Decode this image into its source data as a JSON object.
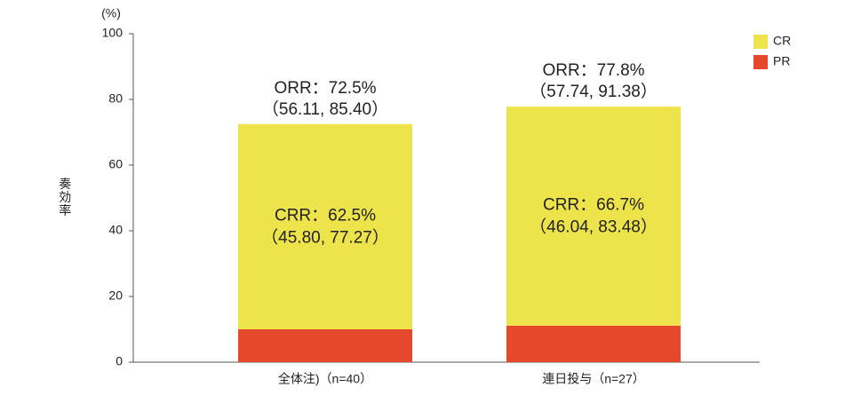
{
  "chart_data": {
    "type": "stacked_bar",
    "y_unit": "(%)",
    "y_label": "奏効率",
    "categories": [
      "全体注)（n=40）",
      "連日投与（n=27）"
    ],
    "series": [
      {
        "name": "PR",
        "color": "#e5482a",
        "values": [
          10,
          11.1
        ]
      },
      {
        "name": "CR",
        "color": "#ede34a",
        "values": [
          62.5,
          66.7
        ]
      }
    ],
    "orr_labels": [
      [
        "ORR：72.5%",
        "（56.11, 85.40）"
      ],
      [
        "ORR：77.8%",
        "（57.74, 91.38）"
      ]
    ],
    "crr_labels": [
      [
        "CRR：62.5%",
        "（45.80, 77.27）"
      ],
      [
        "CRR：66.7%",
        "（46.04, 83.48）"
      ]
    ],
    "ylim": [
      0,
      100
    ],
    "yticks": [
      0,
      20,
      40,
      60,
      80,
      100
    ],
    "legend": "top-right"
  }
}
